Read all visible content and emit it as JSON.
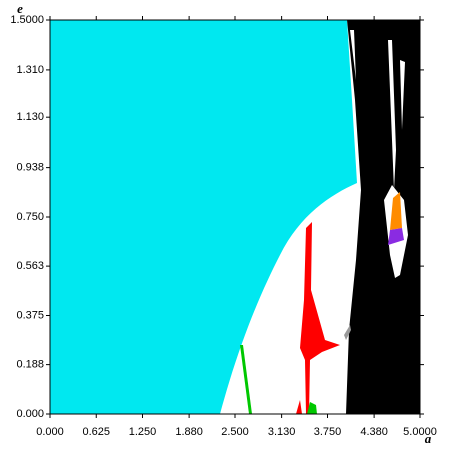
{
  "chart_data": {
    "type": "region",
    "x_label": "a",
    "y_label": "e",
    "xlim": [
      0,
      5
    ],
    "ylim": [
      0,
      1.5
    ],
    "xticks": [
      {
        "value": 0,
        "label": "0.000"
      },
      0.625,
      {
        "value": 1.25,
        "label": "1.250"
      },
      {
        "value": 1.88,
        "label": "1.880"
      },
      {
        "value": 2.5,
        "label": "2.500"
      },
      {
        "value": 3.13,
        "label": "3.130"
      },
      {
        "value": 3.75,
        "label": "3.750"
      },
      {
        "value": 4.38,
        "label": "4.380"
      },
      {
        "value": 5,
        "label": "5.0000"
      }
    ],
    "yticks": [
      {
        "value": 0,
        "label": "0.000"
      },
      0.188,
      0.375,
      0.563,
      {
        "value": 0.75,
        "label": "0.750"
      },
      0.938,
      {
        "value": 1.13,
        "label": "1.130"
      },
      {
        "value": 1.31,
        "label": "1.310"
      },
      {
        "value": 1.5,
        "label": "1.5000"
      }
    ]
  }
}
